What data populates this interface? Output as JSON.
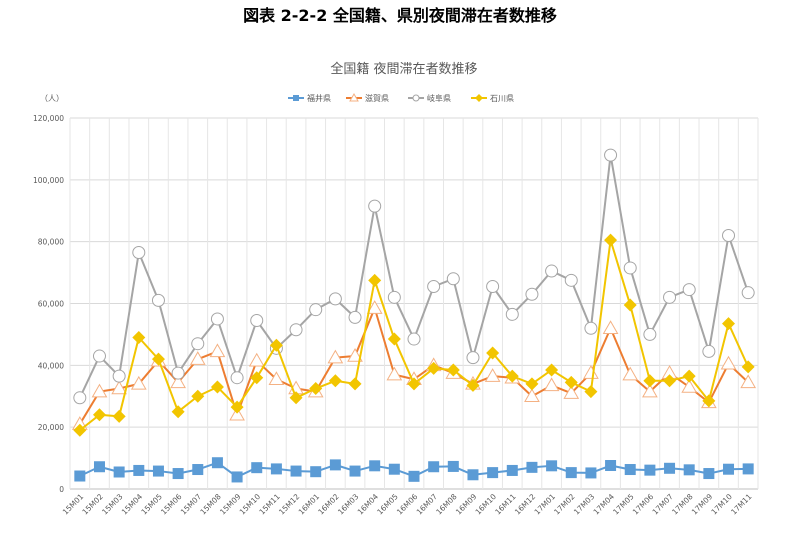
{
  "page_title": "図表 2-2-2 全国籍、県別夜間滞在者数推移",
  "chart_data": {
    "type": "line",
    "title": "全国籍 夜間滞在者数推移",
    "ylabel": "（人）",
    "xlabel": "",
    "ylim": [
      0,
      120000
    ],
    "yticks": [
      0,
      20000,
      40000,
      60000,
      80000,
      100000,
      120000
    ],
    "ytick_labels": [
      "0",
      "20,000",
      "40,000",
      "60,000",
      "80,000",
      "100,000",
      "120,000"
    ],
    "grid": true,
    "legend_position": "top",
    "categories": [
      "15M01",
      "15M02",
      "15M03",
      "15M04",
      "15M05",
      "15M06",
      "15M07",
      "15M08",
      "15M09",
      "15M10",
      "15M11",
      "15M12",
      "16M01",
      "16M02",
      "16M03",
      "16M04",
      "16M05",
      "16M06",
      "16M07",
      "16M08",
      "16M09",
      "16M10",
      "16M11",
      "16M12",
      "17M01",
      "17M02",
      "17M03",
      "17M04",
      "17M05",
      "17M06",
      "17M07",
      "17M08",
      "17M09",
      "17M10",
      "17M11"
    ],
    "series": [
      {
        "name": "福井県",
        "color": "#5b9bd5",
        "marker": "square",
        "values": [
          4200,
          7200,
          5500,
          6000,
          5800,
          5000,
          6300,
          8500,
          3900,
          6900,
          6500,
          5800,
          5600,
          7800,
          5800,
          7500,
          6400,
          4100,
          7200,
          7300,
          4600,
          5300,
          6000,
          7000,
          7500,
          5300,
          5200,
          7600,
          6300,
          6100,
          6700,
          6200,
          5000,
          6400,
          6500
        ]
      },
      {
        "name": "滋賀県",
        "color": "#ed7d31",
        "marker": "triangle",
        "values": [
          21000,
          31500,
          32500,
          34000,
          41500,
          34500,
          42000,
          44500,
          24000,
          41500,
          35500,
          32500,
          31500,
          42500,
          43000,
          58500,
          37000,
          35500,
          40000,
          37500,
          34000,
          36500,
          36000,
          30000,
          33500,
          31000,
          37500,
          52000,
          37000,
          31500,
          37500,
          33000,
          28000,
          40500,
          34500
        ]
      },
      {
        "name": "岐阜県",
        "color": "#a5a5a5",
        "marker": "circle",
        "values": [
          29500,
          43000,
          36500,
          76500,
          61000,
          37500,
          47000,
          55000,
          36000,
          54500,
          45500,
          51500,
          58000,
          61500,
          55500,
          91500,
          62000,
          48500,
          65500,
          68000,
          42500,
          65500,
          56500,
          63000,
          70500,
          67500,
          52000,
          108000,
          71500,
          50000,
          62000,
          64500,
          44500,
          82000,
          63500
        ]
      },
      {
        "name": "石川県",
        "color": "#f2c500",
        "marker": "diamond",
        "values": [
          19000,
          24000,
          23500,
          49000,
          42000,
          25000,
          30000,
          33000,
          26500,
          36000,
          46500,
          29500,
          32500,
          35000,
          34000,
          67500,
          48500,
          34000,
          39000,
          38500,
          33500,
          44000,
          36500,
          34000,
          38500,
          34500,
          31500,
          80500,
          59500,
          35000,
          35000,
          36500,
          28500,
          53500,
          39500
        ]
      }
    ]
  }
}
